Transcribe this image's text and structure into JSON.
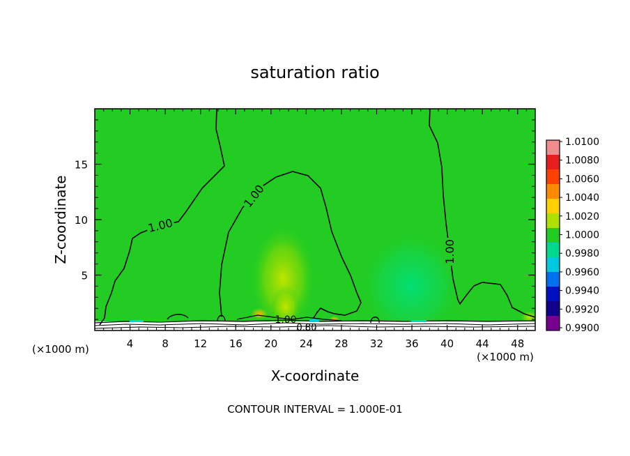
{
  "chart_data": {
    "type": "heatmap",
    "title": "saturation ratio",
    "xlabel": "X-coordinate",
    "ylabel": "Z-coordinate",
    "x_unit_left": "(×1000 m)",
    "x_unit_right": "(×1000 m)",
    "xlim": [
      0,
      50
    ],
    "ylim": [
      0,
      20
    ],
    "x_ticks": [
      4,
      8,
      12,
      16,
      20,
      24,
      28,
      32,
      36,
      40,
      44,
      48
    ],
    "y_ticks": [
      5,
      10,
      15
    ],
    "footer": "CONTOUR INTERVAL = 1.000E-01",
    "background_value_color": "#22cc22",
    "colorbar": {
      "levels": [
        "1.0100",
        "1.0080",
        "1.0060",
        "1.0040",
        "1.0020",
        "1.0000",
        "0.9980",
        "0.9960",
        "0.9940",
        "0.9920",
        "0.9900"
      ],
      "colors": [
        "#f08c8c",
        "#e61e1e",
        "#ff4000",
        "#ff8a00",
        "#ffd000",
        "#b0e000",
        "#22cc22",
        "#00d890",
        "#00c8e0",
        "#0070f0",
        "#0010c0",
        "#10008c",
        "#780090"
      ]
    },
    "contour_labels": [
      {
        "text": "1.00",
        "x": 7.5,
        "y": 9.8
      },
      {
        "text": "1.00",
        "x": 18,
        "y": 12
      },
      {
        "text": "1.00",
        "x": 40.6,
        "y": 7
      },
      {
        "text": "1.00",
        "x": 21.6,
        "y": 0.9
      },
      {
        "text": "0.80",
        "x": 23.8,
        "y": 0.2
      }
    ]
  }
}
